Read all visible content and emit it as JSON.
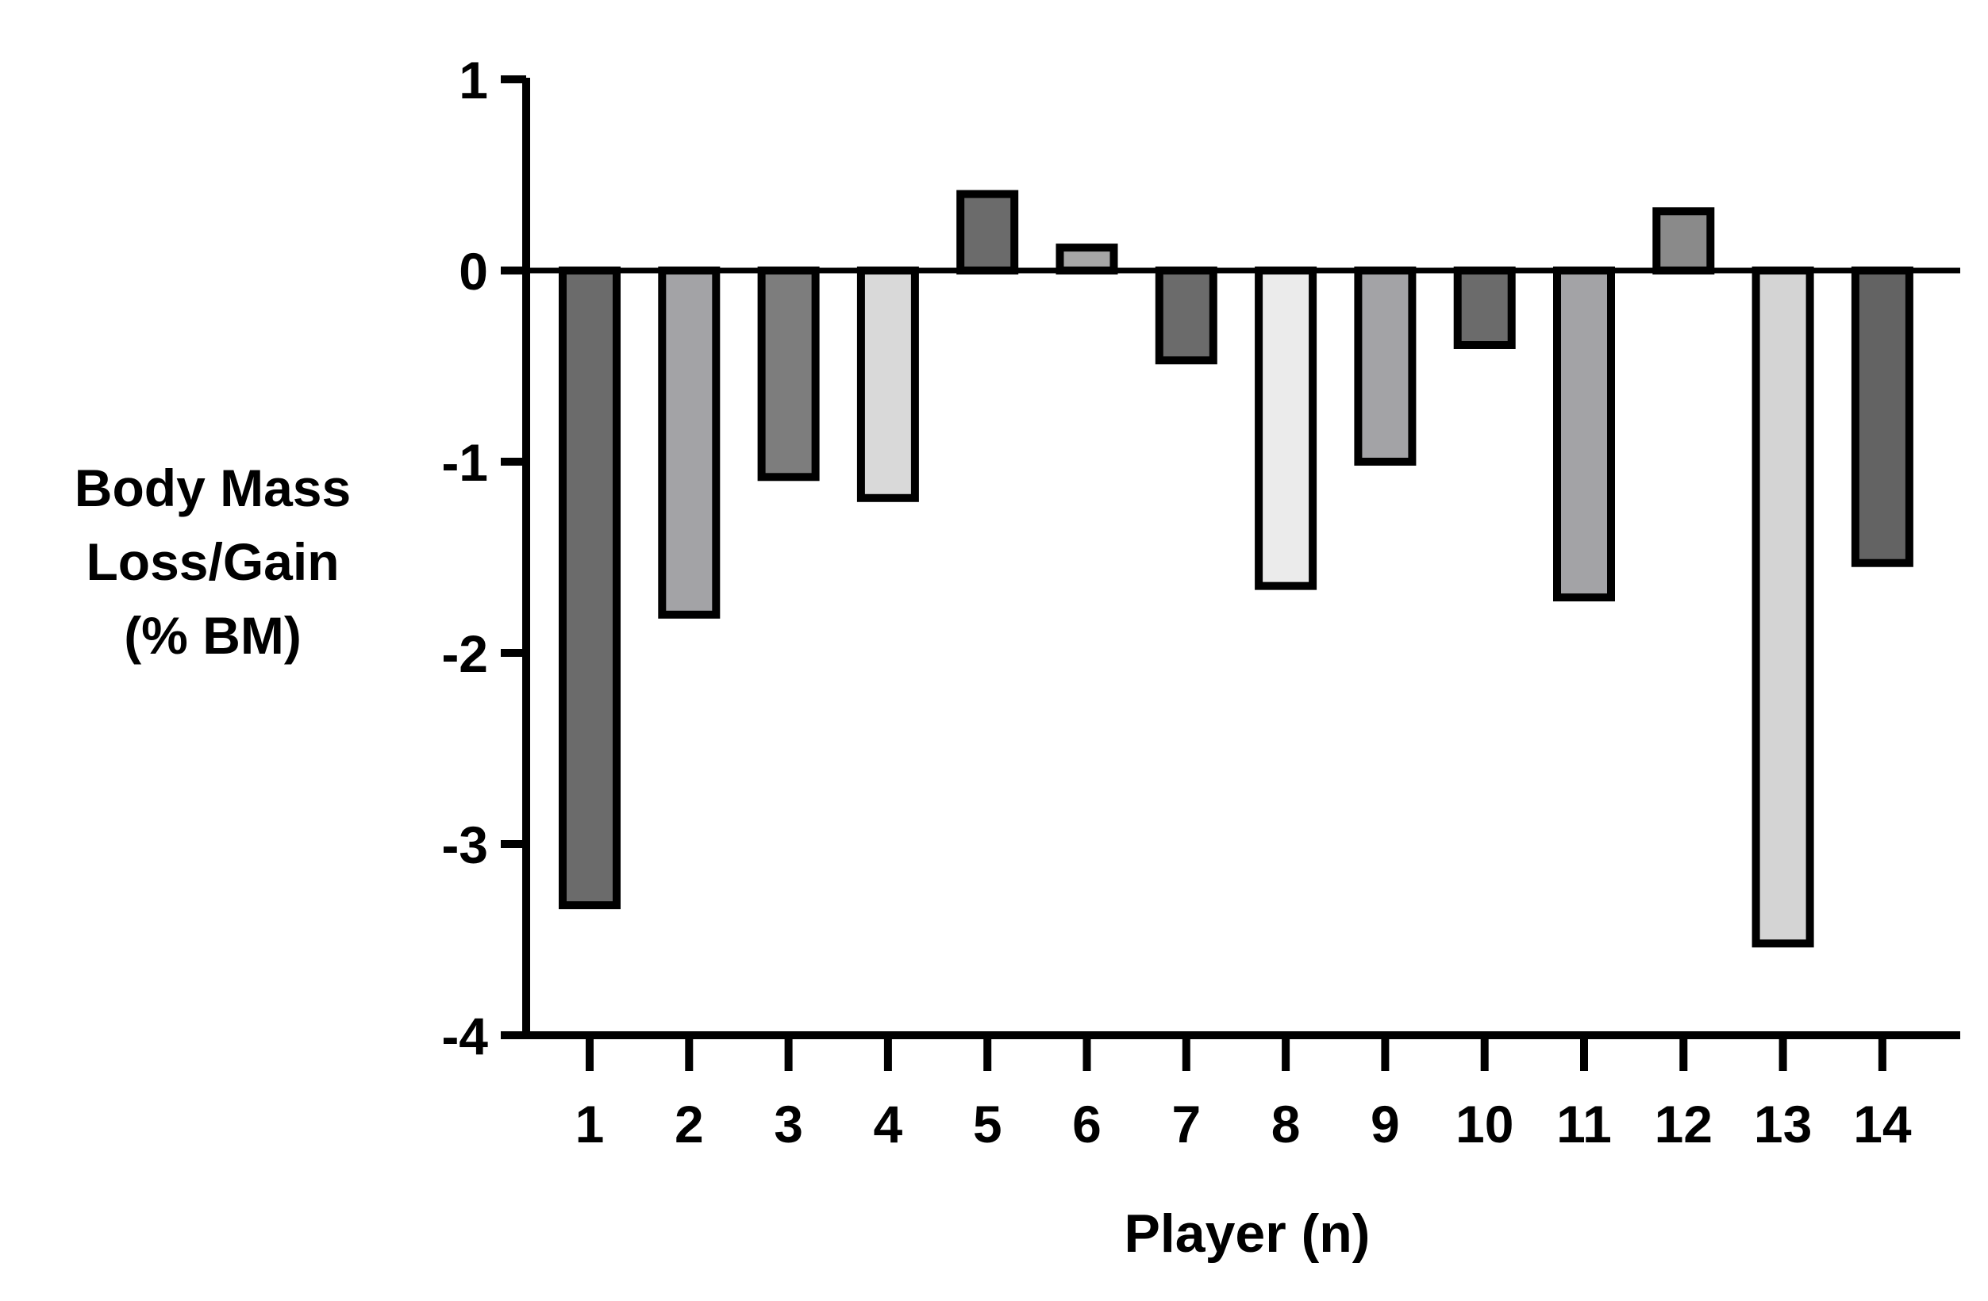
{
  "chart_data": {
    "type": "bar",
    "xlabel": "Player (n)",
    "ylabel": [
      "Body Mass",
      "Loss/Gain",
      "(% BM)"
    ],
    "ylim": [
      -4,
      1
    ],
    "yticks": [
      "1",
      "0",
      "-1",
      "-2",
      "-3",
      "-4"
    ],
    "categories": [
      "1",
      "2",
      "3",
      "4",
      "5",
      "6",
      "7",
      "8",
      "9",
      "10",
      "11",
      "12",
      "13",
      "14"
    ],
    "values": [
      -3.32,
      -1.8,
      -1.08,
      -1.19,
      0.4,
      0.12,
      -0.47,
      -1.65,
      -1.0,
      -0.39,
      -1.71,
      0.31,
      -3.52,
      -1.53
    ],
    "bar_colors": [
      "#6b6b6b",
      "#a3a3a6",
      "#7d7d7d",
      "#d9d9d9",
      "#6b6b6b",
      "#a6a6a6",
      "#6b6b6b",
      "#ebebeb",
      "#a3a3a6",
      "#6b6b6b",
      "#a3a3a6",
      "#8a8a8a",
      "#d4d4d4",
      "#636363"
    ],
    "grid": false,
    "legend": "none"
  }
}
